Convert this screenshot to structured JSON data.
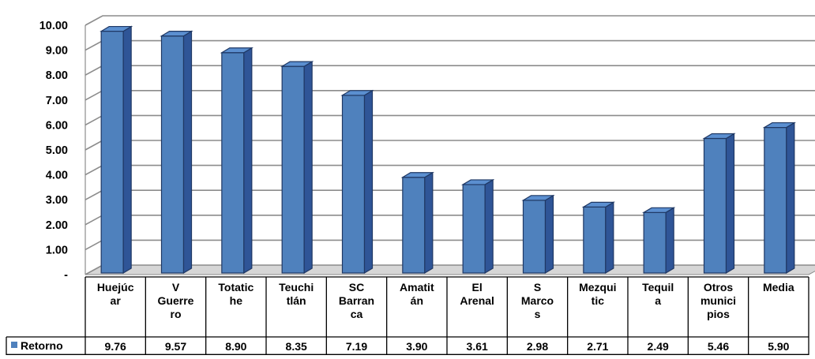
{
  "chart_data": {
    "type": "bar",
    "categories": [
      [
        "Huejúc",
        "ar"
      ],
      [
        "V",
        "Guerre",
        "ro"
      ],
      [
        "Totatic",
        "he"
      ],
      [
        "Teuchi",
        "tlán"
      ],
      [
        "SC",
        "Barran",
        "ca"
      ],
      [
        "Amatit",
        "án"
      ],
      [
        "El",
        "Arenal"
      ],
      [
        "S",
        "Marco",
        "s"
      ],
      [
        "Mezqui",
        "tic"
      ],
      [
        "Tequil",
        "a"
      ],
      [
        "Otros",
        "munici",
        "pios"
      ],
      [
        "Media"
      ]
    ],
    "series": [
      {
        "name": "Retorno",
        "values": [
          9.76,
          9.57,
          8.9,
          8.35,
          7.19,
          3.9,
          3.61,
          2.98,
          2.71,
          2.49,
          5.46,
          5.9
        ],
        "labels": [
          "9.76",
          "9.57",
          "8.90",
          "8.35",
          "7.19",
          "3.90",
          "3.61",
          "2.98",
          "2.71",
          "2.49",
          "5.46",
          "5.90"
        ],
        "color": "#4f81bd"
      }
    ],
    "y_ticks": [
      "-",
      "1.00",
      "2.00",
      "3.00",
      "4.00",
      "5.00",
      "6.00",
      "7.00",
      "8.00",
      "9.00",
      "10.00"
    ],
    "ylim": [
      0,
      10
    ],
    "grid": true,
    "legend": "data-table",
    "style": "3d-column"
  }
}
